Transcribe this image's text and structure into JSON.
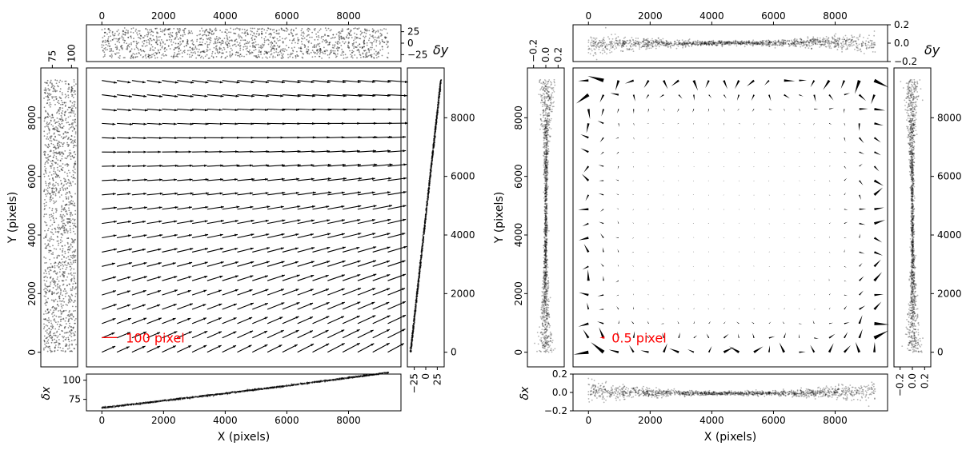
{
  "chart_data": [
    {
      "type": "scatter",
      "title": "",
      "xlabel": "X (pixels)",
      "ylabel": "Y (pixels)",
      "xlim": [
        -500,
        9700
      ],
      "ylim": [
        -500,
        9700
      ],
      "xticks": [
        "0",
        "2000",
        "4000",
        "6000",
        "8000"
      ],
      "yticks": [
        "0",
        "2000",
        "4000",
        "6000",
        "8000"
      ],
      "quiver": {
        "grid_spacing": 488,
        "n": 20,
        "arrow_scale_label": "100 pixel",
        "label_color": "#ff0000"
      },
      "top_panel": {
        "ylabel": "δy",
        "yticks": [
          "25",
          "0",
          "−25"
        ],
        "ylim": [
          -40,
          40
        ]
      },
      "bottom_panel": {
        "ylabel": "δx",
        "yticks": [
          "100",
          "75"
        ],
        "ylim": [
          60,
          108
        ]
      },
      "left_panel": {
        "xticks": [
          "75",
          "100"
        ],
        "xlim": [
          60,
          108
        ]
      },
      "right_panel": {
        "xticks": [
          "−25",
          "0",
          "25"
        ],
        "xlim": [
          -40,
          40
        ]
      }
    },
    {
      "type": "scatter",
      "title": "",
      "xlabel": "X (pixels)",
      "ylabel": "Y (pixels)",
      "xlim": [
        -500,
        9700
      ],
      "ylim": [
        -500,
        9700
      ],
      "xticks": [
        "0",
        "2000",
        "4000",
        "6000",
        "8000"
      ],
      "yticks": [
        "0",
        "2000",
        "4000",
        "6000",
        "8000"
      ],
      "quiver": {
        "grid_spacing": 488,
        "n": 20,
        "arrow_scale_label": "0.5 pixel",
        "label_color": "#ff0000"
      },
      "top_panel": {
        "ylabel": "δy",
        "yticks": [
          "0.2",
          "0.0",
          "−0.2"
        ],
        "ylim": [
          -0.2,
          0.2
        ]
      },
      "bottom_panel": {
        "ylabel": "δx",
        "yticks": [
          "0.2",
          "0.0",
          "−0.2"
        ],
        "ylim": [
          -0.2,
          0.2
        ]
      },
      "left_panel": {
        "xticks": [
          "−0.2",
          "0.0",
          "0.2"
        ],
        "xlim": [
          -0.3,
          0.3
        ]
      },
      "right_panel": {
        "xticks": [
          "−0.2",
          "0.0",
          "0.2"
        ],
        "xlim": [
          -0.3,
          0.3
        ]
      }
    }
  ]
}
